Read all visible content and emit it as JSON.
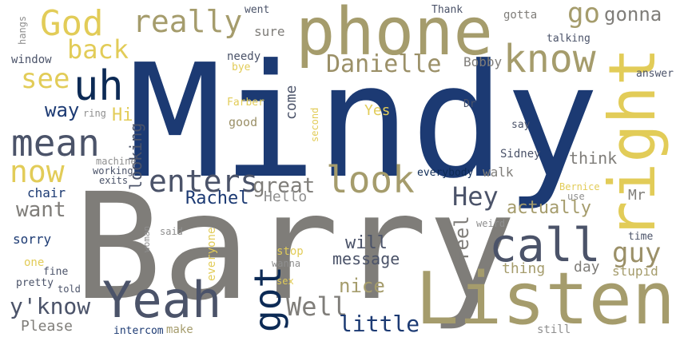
{
  "palette": {
    "navy": "#1c3a73",
    "gray": "#7f7d79",
    "slate": "#4b5369",
    "khaki": "#a59c6c",
    "yellow": "#e2cc58",
    "darknavy": "#0c2a55",
    "olive": "#9b9068",
    "lightgray": "#8f8f8f"
  },
  "words": [
    "Mindy",
    "Barry",
    "Listen",
    "phone",
    "right",
    "Yeah",
    "uh",
    "call",
    "God",
    "know",
    "look",
    "really",
    "Danielle",
    "now",
    "got",
    "mean",
    "see",
    "enters",
    "Hey",
    "back",
    "guy",
    "go",
    "gonna",
    "Well",
    "y'know",
    "great",
    "Rachel",
    "little",
    "nice",
    "want",
    "way",
    "Hi",
    "actually",
    "Yes",
    "think",
    "feel",
    "will",
    "message",
    "looking",
    "come",
    "Please",
    "Mr",
    "Hello",
    "thing",
    "day",
    "stupid",
    "Bobby",
    "walk",
    "needy",
    "sure",
    "talking",
    "Thank",
    "went",
    "gotta",
    "Sidney",
    "everybody",
    "Dr",
    "say",
    "answer",
    "window",
    "chair",
    "sorry",
    "pretty",
    "fine",
    "one",
    "told",
    "intercom",
    "make",
    "still",
    "machine",
    "working",
    "exits",
    "woman",
    "said",
    "everyone",
    "stop",
    "wanna",
    "sex",
    "time",
    "weird",
    "use",
    "Bernice",
    "second",
    "Farber",
    "bye",
    "ring",
    "good",
    "hangs",
    "wanna"
  ]
}
